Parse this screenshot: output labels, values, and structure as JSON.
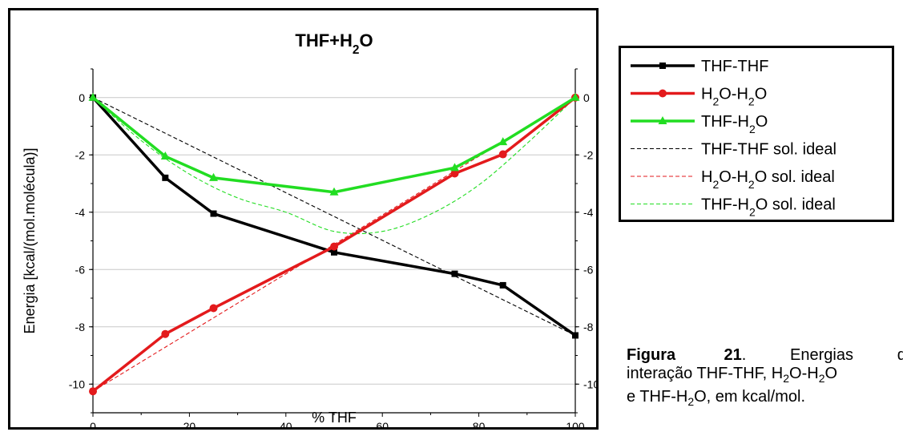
{
  "chart_data": {
    "type": "line",
    "title": "THF+H₂O",
    "title_parts": [
      "THF+H",
      "2",
      "O"
    ],
    "xlabel": "% THF",
    "ylabel": "Energia [kcal/(mol.molécula)]",
    "xlim": [
      0,
      100
    ],
    "ylim": [
      -11,
      1
    ],
    "xticks": [
      0,
      20,
      40,
      60,
      80,
      100
    ],
    "yticks": [
      0,
      -2,
      -4,
      -6,
      -8,
      -10
    ],
    "grid": true,
    "legend_position": "right-outside",
    "series": [
      {
        "name": "THF-THF",
        "name_parts": [
          "THF-THF"
        ],
        "color": "#000000",
        "style": "solid",
        "marker": "square",
        "x": [
          0,
          15,
          25,
          50,
          75,
          85,
          100
        ],
        "y": [
          0.0,
          -2.8,
          -4.05,
          -5.4,
          -6.15,
          -6.55,
          -8.3
        ]
      },
      {
        "name": "H₂O-H₂O",
        "name_parts": [
          "H",
          "2",
          "O-H",
          "2",
          "O"
        ],
        "color": "#e31a1c",
        "style": "solid",
        "marker": "circle",
        "x": [
          0,
          15,
          25,
          50,
          75,
          85,
          100
        ],
        "y": [
          -10.25,
          -8.25,
          -7.35,
          -5.2,
          -2.65,
          -1.98,
          0.0
        ]
      },
      {
        "name": "THF-H₂O",
        "name_parts": [
          "THF-H",
          "2",
          "O"
        ],
        "color": "#22dd22",
        "style": "solid",
        "marker": "triangle",
        "x": [
          0,
          15,
          25,
          50,
          75,
          85,
          100
        ],
        "y": [
          0.0,
          -2.05,
          -2.8,
          -3.3,
          -2.45,
          -1.55,
          0.0
        ]
      },
      {
        "name": "THF-THF sol. ideal",
        "name_parts": [
          "THF-THF sol. ideal"
        ],
        "color": "#000000",
        "style": "dashed",
        "marker": "none",
        "x": [
          0,
          100
        ],
        "y": [
          0.0,
          -8.3
        ]
      },
      {
        "name": "H₂O-H₂O sol. ideal",
        "name_parts": [
          "H",
          "2",
          "O-H",
          "2",
          "O sol. ideal"
        ],
        "color": "#e31a1c",
        "style": "dashed",
        "marker": "none",
        "x": [
          0,
          100
        ],
        "y": [
          -10.25,
          0.0
        ]
      },
      {
        "name": "THF-H₂O sol. ideal",
        "name_parts": [
          "THF-H",
          "2",
          "O sol. ideal"
        ],
        "color": "#22dd22",
        "style": "dashed",
        "marker": "none",
        "x": [
          0,
          10,
          20,
          30,
          40,
          50,
          60,
          70,
          80,
          90,
          100
        ],
        "y": [
          0.0,
          -1.5,
          -2.67,
          -3.5,
          -4.0,
          -4.67,
          -4.67,
          -4.07,
          -3.05,
          -1.6,
          0.0
        ]
      }
    ]
  },
  "caption": {
    "label": "Figura",
    "number": "21",
    "line1_word": "Energias",
    "line1_end": "de",
    "line2_parts": [
      "interação THF-THF, H",
      "2",
      "O-H",
      "2",
      "O"
    ],
    "line3_parts": [
      "e THF-H",
      "2",
      "O, em kcal/mol."
    ]
  }
}
